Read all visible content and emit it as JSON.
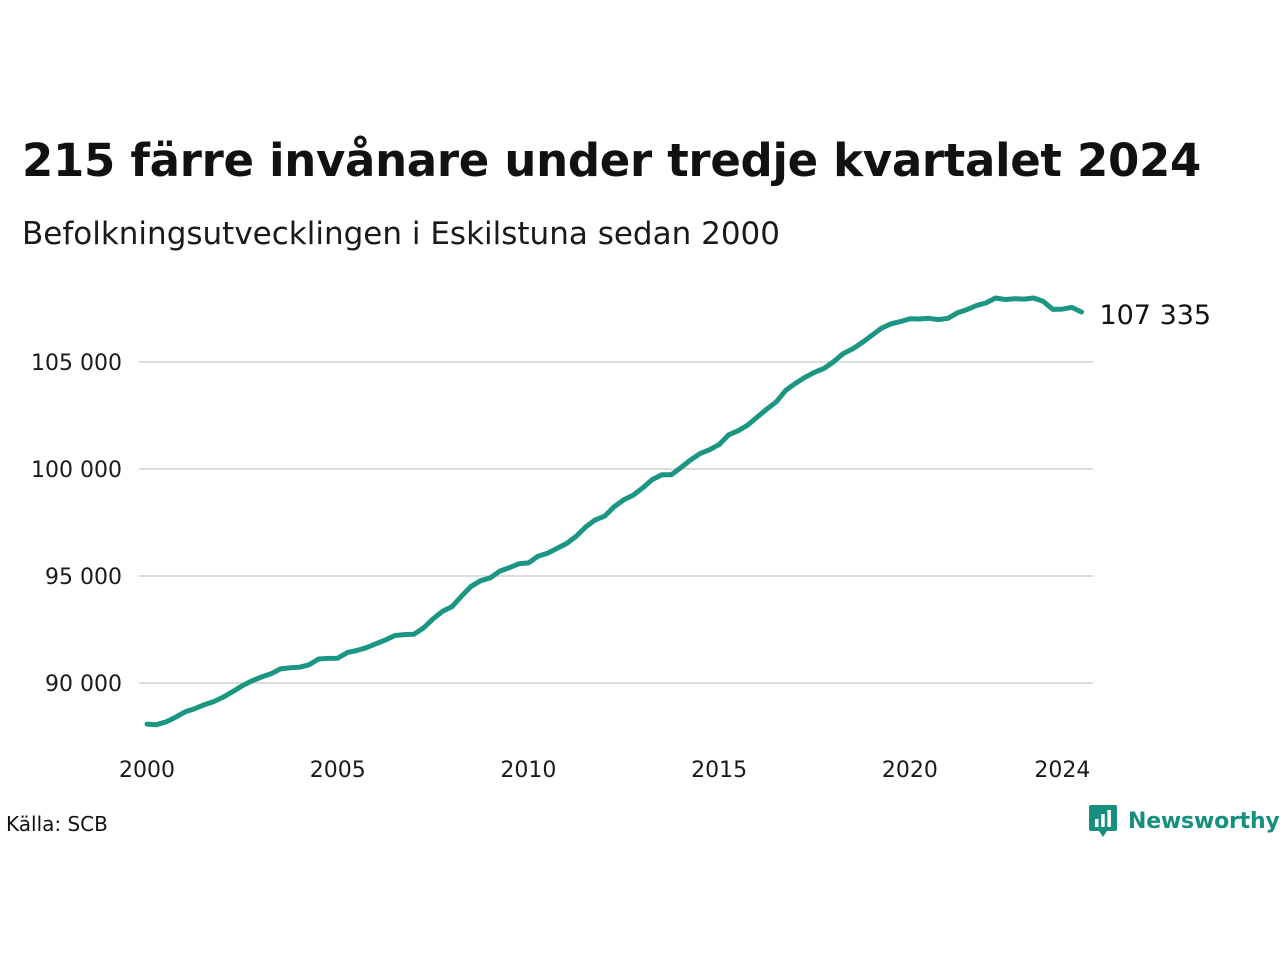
{
  "title": "215 färre invånare under tredje kvartalet 2024",
  "subtitle": "Befolkningsutvecklingen i Eskilstuna sedan 2000",
  "source": "Källa: SCB",
  "brand": {
    "name": "Newsworthy",
    "icon": "newsworthy-logo-icon",
    "color": "#178f7f"
  },
  "chart_data": {
    "type": "line",
    "title": "215 färre invånare under tredje kvartalet 2024",
    "subtitle": "Befolkningsutvecklingen i Eskilstuna sedan 2000",
    "xlabel": "",
    "ylabel": "",
    "xlim": [
      2000,
      2024.75
    ],
    "ylim": [
      87000,
      108500
    ],
    "x_ticks": [
      2000,
      2005,
      2010,
      2015,
      2020,
      2024
    ],
    "x_tick_labels": [
      "2000",
      "2005",
      "2010",
      "2015",
      "2020",
      "2024"
    ],
    "y_ticks": [
      90000,
      95000,
      100000,
      105000
    ],
    "y_tick_labels": [
      "90 000",
      "95 000",
      "100 000",
      "105 000"
    ],
    "grid": "horizontal",
    "line_color": "#1a9683",
    "end_label": "107 335",
    "series": [
      {
        "x": [
          2000.0,
          2000.25,
          2000.5,
          2000.75,
          2001.0,
          2001.25,
          2001.5,
          2001.75,
          2002.0,
          2002.25,
          2002.5,
          2002.75,
          2003.0,
          2003.25,
          2003.5,
          2003.75,
          2004.0,
          2004.25,
          2004.5,
          2004.75,
          2005.0,
          2005.25,
          2005.5,
          2005.75,
          2006.0,
          2006.25,
          2006.5,
          2006.75,
          2007.0,
          2007.25,
          2007.5,
          2007.75,
          2008.0,
          2008.25,
          2008.5,
          2008.75,
          2009.0,
          2009.25,
          2009.5,
          2009.75,
          2010.0,
          2010.25,
          2010.5,
          2010.75,
          2011.0,
          2011.25,
          2011.5,
          2011.75,
          2012.0,
          2012.25,
          2012.5,
          2012.75,
          2013.0,
          2013.25,
          2013.5,
          2013.75,
          2014.0,
          2014.25,
          2014.5,
          2014.75,
          2015.0,
          2015.25,
          2015.5,
          2015.75,
          2016.0,
          2016.25,
          2016.5,
          2016.75,
          2017.0,
          2017.25,
          2017.5,
          2017.75,
          2018.0,
          2018.25,
          2018.5,
          2018.75,
          2019.0,
          2019.25,
          2019.5,
          2019.75,
          2020.0,
          2020.25,
          2020.5,
          2020.75,
          2021.0,
          2021.25,
          2021.5,
          2021.75,
          2022.0,
          2022.25,
          2022.5,
          2022.75,
          2023.0,
          2023.25,
          2023.5,
          2023.75,
          2024.0,
          2024.25,
          2024.5
        ],
        "values": [
          88080,
          88050,
          88180,
          88400,
          88650,
          88800,
          88980,
          89130,
          89340,
          89600,
          89880,
          90100,
          90280,
          90430,
          90660,
          90710,
          90740,
          90850,
          91120,
          91150,
          91160,
          91420,
          91520,
          91650,
          91830,
          92010,
          92220,
          92260,
          92280,
          92570,
          93000,
          93350,
          93570,
          94070,
          94520,
          94780,
          94910,
          95230,
          95390,
          95570,
          95610,
          95920,
          96060,
          96290,
          96520,
          96850,
          97290,
          97620,
          97800,
          98240,
          98560,
          98780,
          99120,
          99510,
          99730,
          99730,
          100070,
          100420,
          100720,
          100900,
          101140,
          101600,
          101790,
          102050,
          102430,
          102800,
          103140,
          103680,
          104000,
          104280,
          104520,
          104700,
          105010,
          105390,
          105610,
          105910,
          106240,
          106570,
          106780,
          106890,
          107020,
          107010,
          107040,
          106980,
          107040,
          107300,
          107450,
          107640,
          107760,
          107990,
          107920,
          107960,
          107940,
          107990,
          107830,
          107460,
          107470,
          107550,
          107335
        ]
      }
    ]
  }
}
